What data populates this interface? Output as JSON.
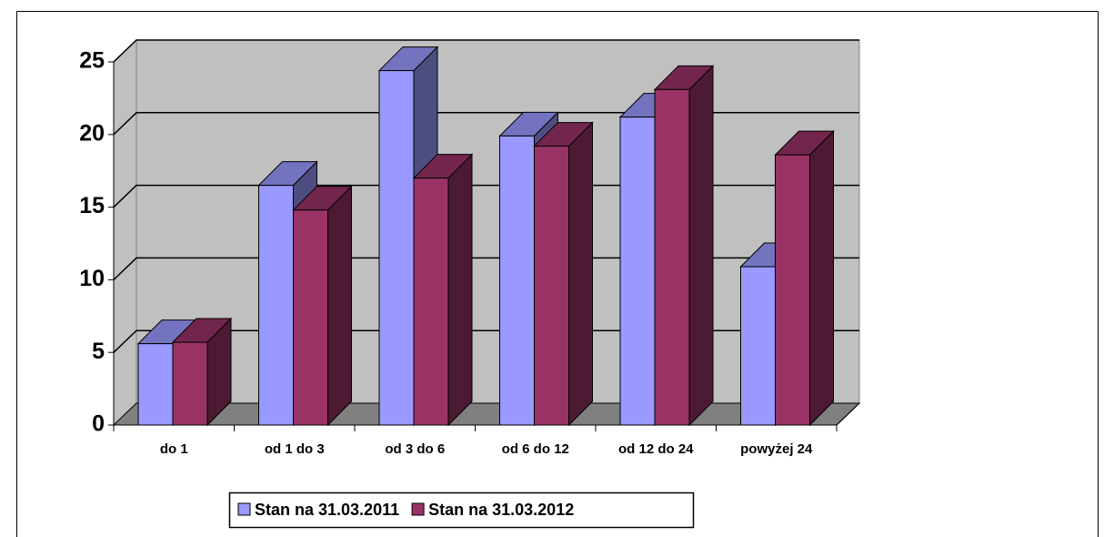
{
  "chart_data": {
    "type": "bar3d",
    "categories": [
      "do 1",
      "od 1 do 3",
      "od 3 do 6",
      "od 6 do 12",
      "od 12 do 24",
      "powyżej 24"
    ],
    "series": [
      {
        "name": "Stan na 31.03.2011",
        "color": "#9999ff",
        "values": [
          5.6,
          16.5,
          24.4,
          19.9,
          21.2,
          10.9
        ]
      },
      {
        "name": "Stan na 31.03.2012",
        "color": "#993366",
        "values": [
          5.7,
          14.8,
          17.0,
          19.2,
          23.1,
          18.6
        ]
      }
    ],
    "ylim": [
      0,
      25
    ],
    "yticks": [
      0,
      5,
      10,
      15,
      20,
      25
    ],
    "grid": true,
    "legend": "bottom"
  }
}
